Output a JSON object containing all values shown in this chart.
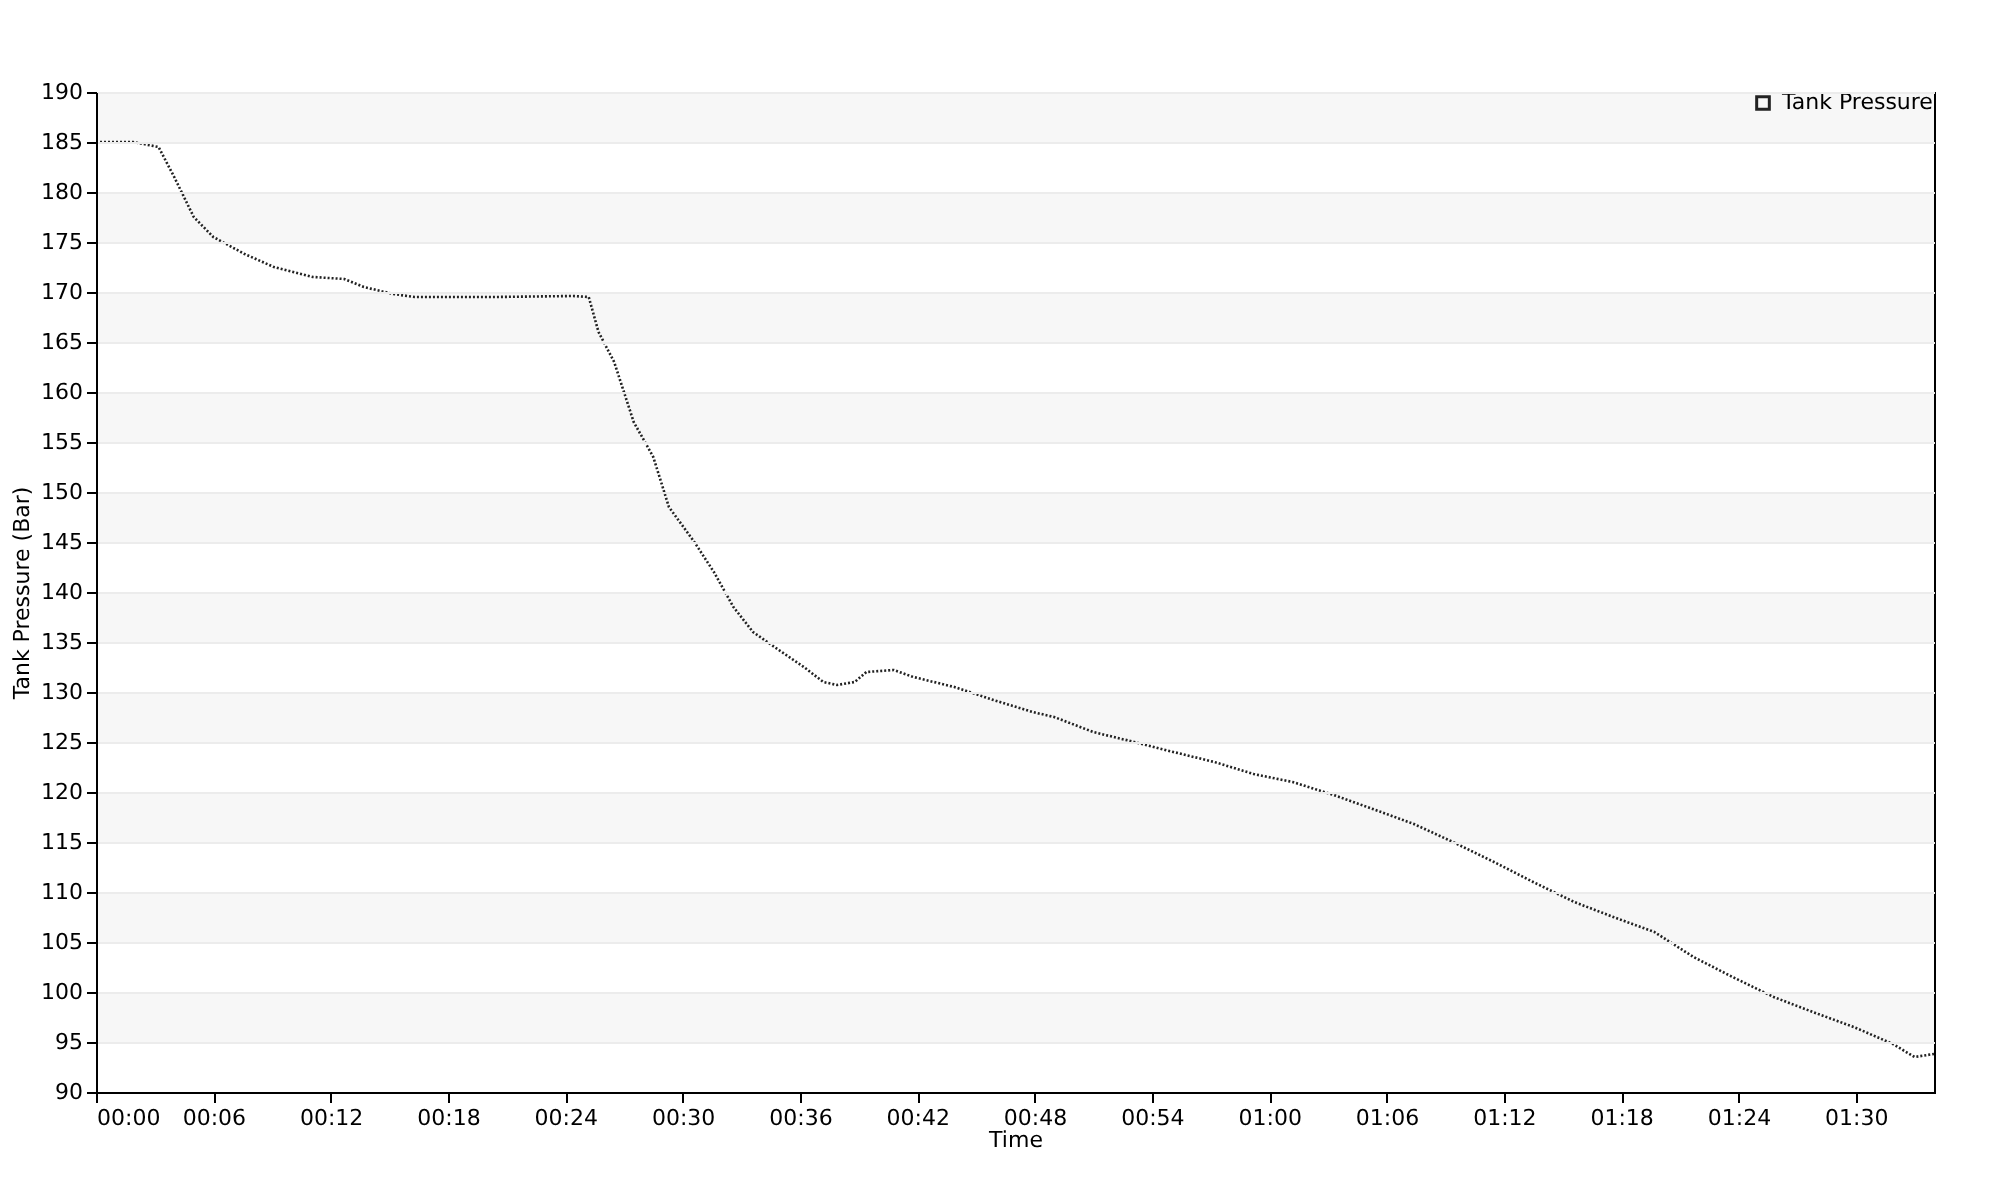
{
  "chart_data": {
    "type": "line",
    "xlabel": "Time",
    "ylabel": "Tank Pressure (Bar)",
    "x": [
      0,
      1.9,
      3.2,
      4.0,
      5.0,
      6.0,
      7.6,
      9.1,
      11.1,
      12.7,
      13.7,
      15.2,
      16.3,
      20.3,
      24.4,
      25.2,
      25.7,
      26.5,
      27.0,
      27.5,
      28.5,
      29.3,
      30.6,
      31.6,
      32.6,
      33.6,
      34.7,
      36.2,
      37.2,
      37.9,
      38.8,
      39.4,
      40.8,
      41.8,
      43.9,
      45.9,
      47.9,
      49.0,
      51.0,
      53.1,
      55.1,
      57.2,
      59.2,
      61.2,
      63.3,
      65.3,
      67.4,
      69.4,
      71.5,
      73.5,
      75.6,
      77.6,
      79.7,
      81.7,
      83.7,
      85.8,
      87.8,
      89.9,
      91.9,
      93.0,
      94.0
    ],
    "series": [
      {
        "name": "Tank Pressure",
        "color": "#222222",
        "values": [
          185,
          185,
          184.5,
          181.5,
          177.5,
          175.5,
          173.8,
          172.5,
          171.5,
          171.3,
          170.5,
          169.8,
          169.5,
          169.5,
          169.6,
          169.5,
          166,
          163,
          160,
          157,
          153.5,
          148.5,
          145,
          142,
          138.5,
          136,
          134.5,
          132.5,
          131,
          130.7,
          131,
          132,
          132.2,
          131.5,
          130.5,
          129.2,
          128,
          127.5,
          126,
          125,
          124,
          123,
          121.8,
          121,
          119.7,
          118.3,
          116.8,
          115,
          113,
          111,
          109,
          107.5,
          106,
          103.5,
          101.5,
          99.5,
          98,
          96.5,
          94.8,
          93.5,
          93.8
        ]
      }
    ],
    "xlim": [
      0,
      94
    ],
    "xticks": [
      {
        "value": 0,
        "label": "00:00"
      },
      {
        "value": 6,
        "label": "00:06"
      },
      {
        "value": 12,
        "label": "00:12"
      },
      {
        "value": 18,
        "label": "00:18"
      },
      {
        "value": 24,
        "label": "00:24"
      },
      {
        "value": 30,
        "label": "00:30"
      },
      {
        "value": 36,
        "label": "00:36"
      },
      {
        "value": 42,
        "label": "00:42"
      },
      {
        "value": 48,
        "label": "00:48"
      },
      {
        "value": 54,
        "label": "00:54"
      },
      {
        "value": 60,
        "label": "01:00"
      },
      {
        "value": 66,
        "label": "01:06"
      },
      {
        "value": 72,
        "label": "01:12"
      },
      {
        "value": 78,
        "label": "01:18"
      },
      {
        "value": 84,
        "label": "01:24"
      },
      {
        "value": 90,
        "label": "01:30"
      }
    ],
    "ylim": [
      90,
      190
    ],
    "yticks": [
      90,
      95,
      100,
      105,
      110,
      115,
      120,
      125,
      130,
      135,
      140,
      145,
      150,
      155,
      160,
      165,
      170,
      175,
      180,
      185,
      190
    ],
    "grid": "y",
    "legend": "top right",
    "line_style": "dotted"
  }
}
